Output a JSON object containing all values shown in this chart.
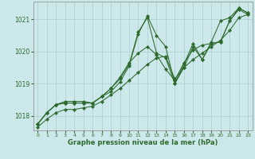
{
  "xlabel": "Graphe pression niveau de la mer (hPa)",
  "bg_color": "#cce8ea",
  "grid_color": "#aacccc",
  "line_color": "#2d6a2d",
  "marker_color": "#2d6a2d",
  "xlim": [
    -0.5,
    23.5
  ],
  "ylim": [
    1017.55,
    1021.55
  ],
  "xticks": [
    0,
    1,
    2,
    3,
    4,
    5,
    6,
    7,
    8,
    9,
    10,
    11,
    12,
    13,
    14,
    15,
    16,
    17,
    18,
    19,
    20,
    21,
    22,
    23
  ],
  "yticks": [
    1018,
    1019,
    1020,
    1021
  ],
  "series": [
    [
      1017.65,
      1017.9,
      1018.1,
      1018.2,
      1018.2,
      1018.25,
      1018.3,
      1018.45,
      1018.65,
      1018.85,
      1019.1,
      1019.35,
      1019.6,
      1019.8,
      1019.85,
      1019.15,
      1019.5,
      1019.75,
      1019.95,
      1020.15,
      1020.35,
      1020.65,
      1021.05,
      1021.15
    ],
    [
      1017.75,
      1018.1,
      1018.35,
      1018.4,
      1018.4,
      1018.4,
      1018.4,
      1018.6,
      1018.75,
      1019.05,
      1019.55,
      1020.55,
      1021.1,
      1020.5,
      1020.15,
      1019.0,
      1019.6,
      1020.25,
      1019.75,
      1020.3,
      1020.95,
      1021.05,
      1021.35,
      1021.2
    ],
    [
      1017.75,
      1018.1,
      1018.35,
      1018.4,
      1018.4,
      1018.4,
      1018.4,
      1018.6,
      1018.85,
      1019.15,
      1019.6,
      1020.6,
      1021.05,
      1019.95,
      1019.8,
      1019.0,
      1019.5,
      1020.15,
      1019.75,
      1020.25,
      1020.3,
      1020.95,
      1021.35,
      1021.2
    ],
    [
      1017.75,
      1018.1,
      1018.35,
      1018.45,
      1018.45,
      1018.45,
      1018.4,
      1018.6,
      1018.85,
      1019.2,
      1019.65,
      1019.95,
      1020.15,
      1019.9,
      1019.45,
      1019.1,
      1019.65,
      1020.05,
      1020.2,
      1020.25,
      1020.3,
      1020.95,
      1021.3,
      1021.15
    ]
  ]
}
